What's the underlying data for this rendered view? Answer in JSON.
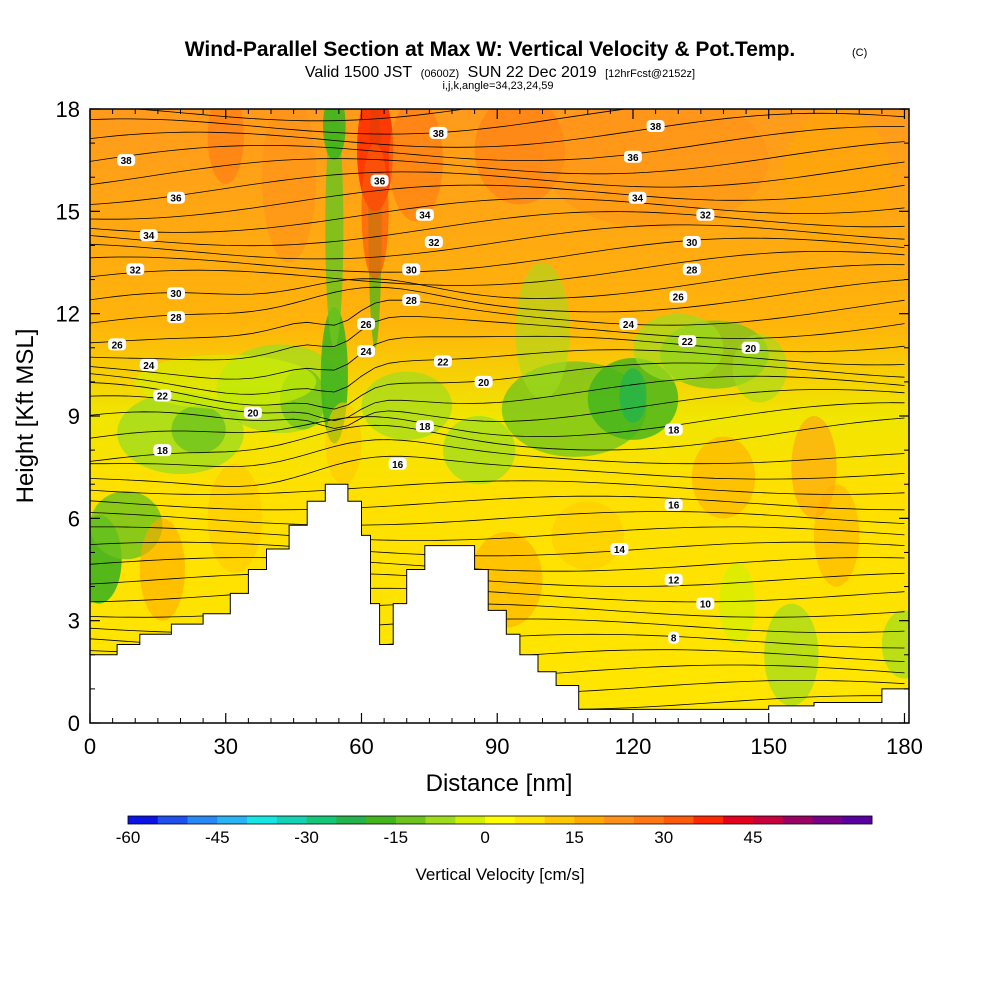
{
  "chart_data": {
    "type": "heatmap",
    "title": "Wind-Parallel Section at Max W: Vertical Velocity & Pot.Temp.",
    "title_unit": "(C)",
    "subtitle": {
      "pre": "Valid 1500 JST",
      "utc": "(0600Z)",
      "mid": "SUN 22 Dec 2019",
      "fcst": "[12hrFcst@2152z]"
    },
    "index_line": "i,j,k,angle=34,23,24,59",
    "xlabel": "Distance [nm]",
    "ylabel": "Height [Kft MSL]",
    "xlim": [
      0,
      181
    ],
    "ylim": [
      0,
      18
    ],
    "x_ticks": [
      0,
      30,
      60,
      90,
      120,
      150,
      180
    ],
    "x_tick_labels": [
      "0",
      "30",
      "60",
      "90",
      "120",
      "150",
      "180"
    ],
    "y_ticks": [
      0,
      3,
      6,
      9,
      12,
      15,
      18
    ],
    "y_tick_labels": [
      "0",
      "3",
      "6",
      "9",
      "12",
      "15",
      "18"
    ],
    "colorbar": {
      "label": "Vertical Velocity [cm/s]",
      "min": -60,
      "step": 5,
      "ticks": [
        -60,
        -45,
        -30,
        -15,
        0,
        15,
        30,
        45
      ],
      "tick_labels": [
        "-60",
        "-45",
        "-30",
        "-15",
        "0",
        "15",
        "30",
        "45"
      ],
      "colors": [
        "#0a14e6",
        "#1e50f0",
        "#2888f5",
        "#28b4f5",
        "#14e6e6",
        "#14d2b4",
        "#14c878",
        "#23b44b",
        "#41b41e",
        "#6ec31e",
        "#a0dc1e",
        "#d2f000",
        "#ffff00",
        "#ffe600",
        "#ffc800",
        "#ffaa00",
        "#ff9119",
        "#ff7814",
        "#ff5a0a",
        "#ff2800",
        "#e6001e",
        "#c8003c",
        "#9b0064",
        "#780087",
        "#5a00a0"
      ]
    },
    "theta_contour_labels": [
      {
        "value": "38",
        "x": 8,
        "y": 16.5
      },
      {
        "value": "38",
        "x": 77,
        "y": 17.3
      },
      {
        "value": "38",
        "x": 125,
        "y": 17.5
      },
      {
        "value": "36",
        "x": 19,
        "y": 15.4
      },
      {
        "value": "36",
        "x": 64,
        "y": 15.9
      },
      {
        "value": "36",
        "x": 120,
        "y": 16.6
      },
      {
        "value": "34",
        "x": 13,
        "y": 14.3
      },
      {
        "value": "34",
        "x": 74,
        "y": 14.9
      },
      {
        "value": "34",
        "x": 121,
        "y": 15.4
      },
      {
        "value": "32",
        "x": 10,
        "y": 13.3
      },
      {
        "value": "32",
        "x": 76,
        "y": 14.1
      },
      {
        "value": "32",
        "x": 136,
        "y": 14.9
      },
      {
        "value": "30",
        "x": 19,
        "y": 12.6
      },
      {
        "value": "30",
        "x": 71,
        "y": 13.3
      },
      {
        "value": "30",
        "x": 133,
        "y": 14.1
      },
      {
        "value": "28",
        "x": 19,
        "y": 11.9
      },
      {
        "value": "28",
        "x": 71,
        "y": 12.4
      },
      {
        "value": "28",
        "x": 133,
        "y": 13.3
      },
      {
        "value": "26",
        "x": 6,
        "y": 11.1
      },
      {
        "value": "26",
        "x": 61,
        "y": 11.7
      },
      {
        "value": "26",
        "x": 130,
        "y": 12.5
      },
      {
        "value": "24",
        "x": 13,
        "y": 10.5
      },
      {
        "value": "24",
        "x": 61,
        "y": 10.9
      },
      {
        "value": "24",
        "x": 119,
        "y": 11.7
      },
      {
        "value": "22",
        "x": 16,
        "y": 9.6
      },
      {
        "value": "22",
        "x": 78,
        "y": 10.6
      },
      {
        "value": "22",
        "x": 132,
        "y": 11.2
      },
      {
        "value": "20",
        "x": 36,
        "y": 9.1
      },
      {
        "value": "20",
        "x": 87,
        "y": 10.0
      },
      {
        "value": "20",
        "x": 146,
        "y": 11.0
      },
      {
        "value": "18",
        "x": 16,
        "y": 8.0
      },
      {
        "value": "18",
        "x": 74,
        "y": 8.7
      },
      {
        "value": "18",
        "x": 129,
        "y": 8.6
      },
      {
        "value": "16",
        "x": 68,
        "y": 7.6
      },
      {
        "value": "16",
        "x": 129,
        "y": 6.4
      },
      {
        "value": "14",
        "x": 117,
        "y": 5.1
      },
      {
        "value": "12",
        "x": 129,
        "y": 4.2
      },
      {
        "value": "10",
        "x": 136,
        "y": 3.5
      },
      {
        "value": "8",
        "x": 129,
        "y": 2.5
      }
    ],
    "terrain": [
      [
        0,
        2
      ],
      [
        6,
        2
      ],
      [
        6,
        2.3
      ],
      [
        11,
        2.3
      ],
      [
        11,
        2.6
      ],
      [
        18,
        2.6
      ],
      [
        18,
        2.9
      ],
      [
        25,
        2.9
      ],
      [
        25,
        3.2
      ],
      [
        31,
        3.2
      ],
      [
        31,
        3.8
      ],
      [
        35,
        3.8
      ],
      [
        35,
        4.5
      ],
      [
        39,
        4.5
      ],
      [
        39,
        5.1
      ],
      [
        44,
        5.1
      ],
      [
        44,
        5.8
      ],
      [
        48,
        5.8
      ],
      [
        48,
        6.5
      ],
      [
        52,
        6.5
      ],
      [
        52,
        7.0
      ],
      [
        57,
        7.0
      ],
      [
        57,
        6.5
      ],
      [
        60,
        6.5
      ],
      [
        60,
        5.5
      ],
      [
        62,
        5.5
      ],
      [
        62,
        3.5
      ],
      [
        64,
        3.5
      ],
      [
        64,
        2.3
      ],
      [
        67,
        2.3
      ],
      [
        67,
        3.5
      ],
      [
        70,
        3.5
      ],
      [
        70,
        4.5
      ],
      [
        74,
        4.5
      ],
      [
        74,
        5.2
      ],
      [
        85,
        5.2
      ],
      [
        85,
        4.5
      ],
      [
        88,
        4.5
      ],
      [
        88,
        3.3
      ],
      [
        92,
        3.3
      ],
      [
        92,
        2.6
      ],
      [
        95,
        2.6
      ],
      [
        95,
        2.0
      ],
      [
        99,
        2.0
      ],
      [
        99,
        1.5
      ],
      [
        103,
        1.5
      ],
      [
        103,
        1.1
      ],
      [
        108,
        1.1
      ],
      [
        108,
        0.4
      ],
      [
        150,
        0.4
      ],
      [
        150,
        0.5
      ],
      [
        160,
        0.5
      ],
      [
        160,
        0.6
      ],
      [
        175,
        0.6
      ],
      [
        175,
        1.0
      ],
      [
        181,
        1.0
      ]
    ]
  }
}
